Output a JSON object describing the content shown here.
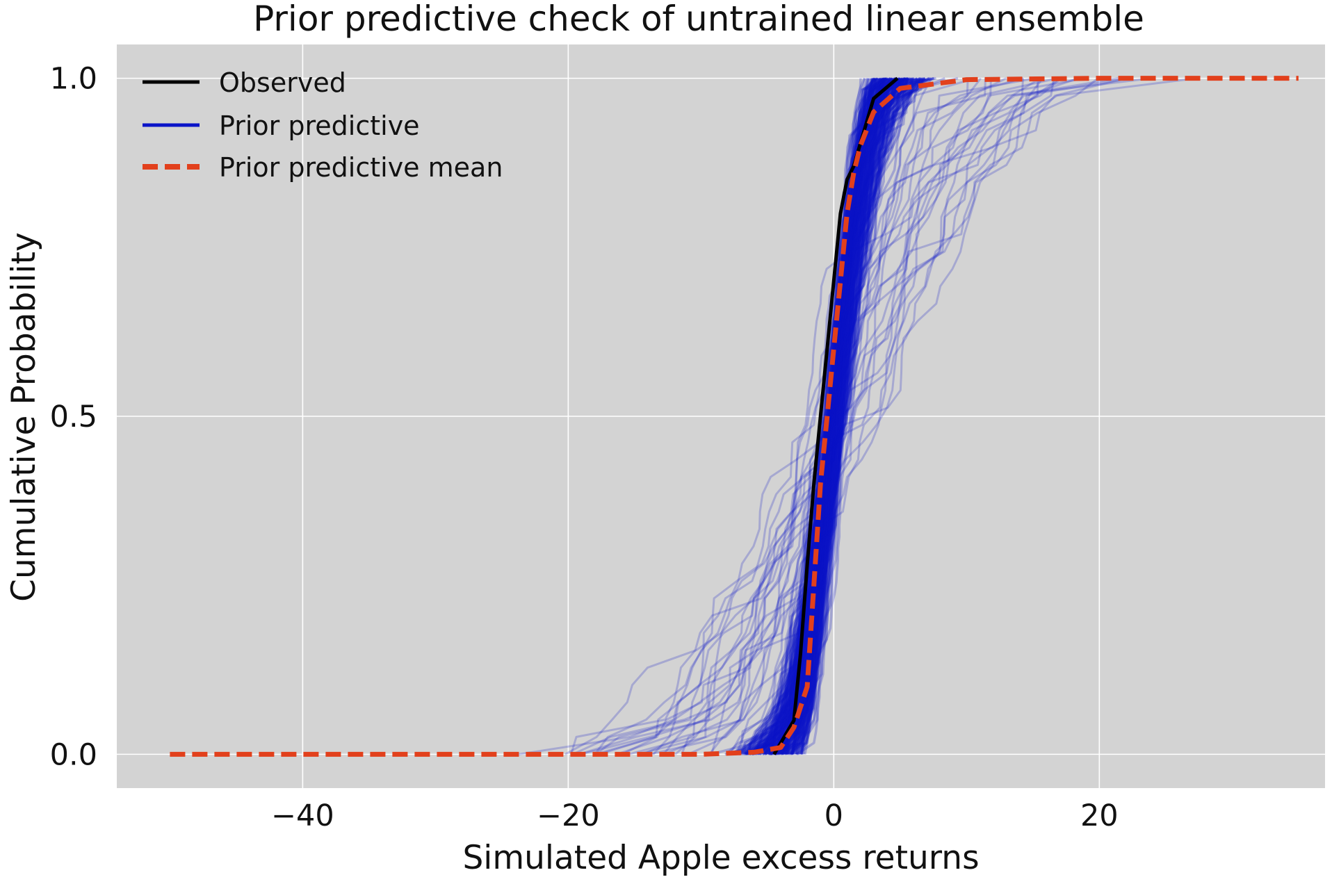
{
  "chart_data": {
    "type": "line",
    "title": "Prior predictive check of untrained linear ensemble",
    "xlabel": "Simulated Apple excess returns",
    "ylabel": "Cumulative Probability",
    "xlim": [
      -54,
      37
    ],
    "ylim": [
      -0.05,
      1.05
    ],
    "x_ticks": [
      -40,
      -20,
      0,
      20
    ],
    "x_tick_labels": [
      "−40",
      "−20",
      "0",
      "20"
    ],
    "y_ticks": [
      0.0,
      0.5,
      1.0
    ],
    "y_tick_labels": [
      "0.0",
      "0.5",
      "1.0"
    ],
    "grid": true,
    "legend_position": "top-left",
    "background_color": "#d3d3d3",
    "series": [
      {
        "name": "Observed",
        "color": "#000000",
        "style": "solid",
        "x": [
          -4.5,
          -3.0,
          -2.5,
          -2.0,
          -1.5,
          -1.0,
          -0.5,
          0.0,
          0.5,
          1.0,
          1.5,
          3.0,
          4.8
        ],
        "y": [
          0.0,
          0.05,
          0.15,
          0.28,
          0.4,
          0.5,
          0.6,
          0.7,
          0.8,
          0.85,
          0.87,
          0.97,
          1.0
        ]
      },
      {
        "name": "Prior predictive",
        "color": "#0a14c8",
        "style": "solid"
      },
      {
        "name": "Prior predictive mean",
        "color": "#e2401c",
        "style": "dashed",
        "x": [
          -50,
          -10,
          -6,
          -4,
          -3,
          -2,
          -1.5,
          -1,
          -0.5,
          0,
          0.5,
          1,
          1.5,
          2,
          3,
          5,
          10,
          20,
          35
        ],
        "y": [
          0.0,
          0.0,
          0.003,
          0.01,
          0.04,
          0.1,
          0.25,
          0.4,
          0.5,
          0.6,
          0.7,
          0.8,
          0.86,
          0.9,
          0.95,
          0.985,
          0.998,
          1.0,
          1.0
        ]
      }
    ]
  }
}
